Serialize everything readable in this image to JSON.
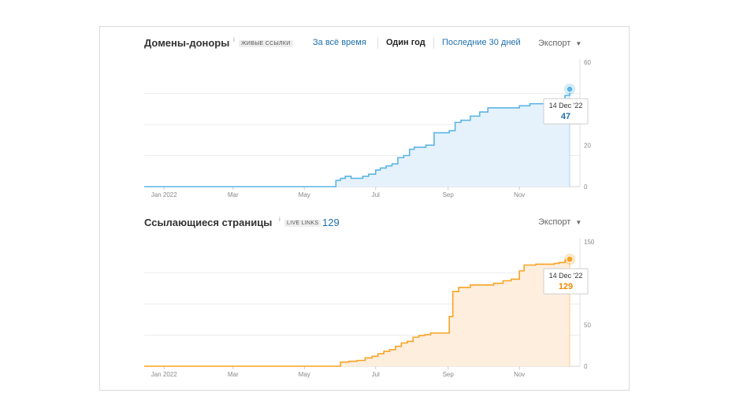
{
  "chart1": {
    "title": "Домены-доноры",
    "info": "i",
    "badge": "ЖИВЫЕ ССЫЛКИ",
    "ranges": [
      "За всё время",
      "Один год",
      "Последние 30 дней"
    ],
    "active_range": "Один год",
    "export_label": "Экспорт",
    "tooltip": {
      "date": "14 Dec '22",
      "value": "47"
    },
    "colors": {
      "line": "#5cb5e6",
      "fill": "#e6f2fb",
      "tooltip_value": "#1f6fad"
    }
  },
  "chart2": {
    "title": "Ссылающиеся страницы",
    "info": "i",
    "badge": "LIVE LINKS",
    "count": "129",
    "export_label": "Экспорт",
    "tooltip": {
      "date": "14 Dec '22",
      "value": "129"
    },
    "colors": {
      "line": "#f7a325",
      "fill": "#fdeedd",
      "tooltip_value": "#f08a00"
    }
  },
  "chart_data": [
    {
      "type": "area",
      "title": "Домены-доноры",
      "x_ticks": [
        "Jan 2022",
        "Mar",
        "May",
        "Jul",
        "Sep",
        "Nov"
      ],
      "y_ticks": [
        0,
        20,
        60
      ],
      "ylim": [
        0,
        60
      ],
      "grid": true,
      "x": [
        "2021-12-15",
        "2022-01-01",
        "2022-02-01",
        "2022-03-01",
        "2022-04-01",
        "2022-05-01",
        "2022-05-25",
        "2022-05-28",
        "2022-06-01",
        "2022-06-05",
        "2022-06-10",
        "2022-06-15",
        "2022-06-20",
        "2022-06-25",
        "2022-07-01",
        "2022-07-05",
        "2022-07-10",
        "2022-07-15",
        "2022-07-20",
        "2022-07-25",
        "2022-07-30",
        "2022-08-03",
        "2022-08-08",
        "2022-08-13",
        "2022-08-20",
        "2022-08-25",
        "2022-08-30",
        "2022-09-02",
        "2022-09-07",
        "2022-09-12",
        "2022-09-20",
        "2022-09-28",
        "2022-10-05",
        "2022-10-15",
        "2022-10-25",
        "2022-11-01",
        "2022-11-10",
        "2022-11-20",
        "2022-11-25",
        "2022-12-01",
        "2022-12-06",
        "2022-12-10",
        "2022-12-14"
      ],
      "series": [
        {
          "values": [
            0,
            0,
            0,
            0,
            0,
            0,
            0,
            3,
            4,
            5,
            4,
            4,
            5,
            6,
            8,
            9,
            10,
            11,
            14,
            15,
            18,
            19,
            19,
            20,
            26,
            26,
            26,
            27,
            31,
            32,
            34,
            36,
            38,
            38,
            38,
            39,
            40,
            40,
            40,
            40,
            42,
            44,
            47
          ]
        }
      ]
    },
    {
      "type": "area",
      "title": "Ссылающиеся страницы",
      "x_ticks": [
        "Jan 2022",
        "Mar",
        "May",
        "Jul",
        "Sep",
        "Nov"
      ],
      "y_ticks": [
        0,
        50,
        150
      ],
      "ylim": [
        0,
        150
      ],
      "grid": true,
      "x": [
        "2021-12-15",
        "2022-01-01",
        "2022-02-01",
        "2022-03-01",
        "2022-04-01",
        "2022-05-01",
        "2022-05-25",
        "2022-06-01",
        "2022-06-08",
        "2022-06-15",
        "2022-06-22",
        "2022-06-28",
        "2022-07-03",
        "2022-07-08",
        "2022-07-13",
        "2022-07-18",
        "2022-07-23",
        "2022-07-28",
        "2022-08-02",
        "2022-08-07",
        "2022-08-12",
        "2022-08-17",
        "2022-08-22",
        "2022-08-27",
        "2022-09-02",
        "2022-09-05",
        "2022-09-10",
        "2022-09-20",
        "2022-10-01",
        "2022-10-10",
        "2022-10-18",
        "2022-10-25",
        "2022-11-01",
        "2022-11-05",
        "2022-11-15",
        "2022-11-25",
        "2022-12-01",
        "2022-12-05",
        "2022-12-10",
        "2022-12-14"
      ],
      "series": [
        {
          "values": [
            0,
            0,
            0,
            0,
            0,
            0,
            0,
            5,
            6,
            7,
            10,
            12,
            15,
            18,
            20,
            24,
            28,
            30,
            35,
            37,
            38,
            40,
            40,
            40,
            60,
            90,
            95,
            98,
            98,
            100,
            103,
            105,
            115,
            122,
            123,
            123,
            124,
            125,
            128,
            129
          ]
        }
      ]
    }
  ]
}
